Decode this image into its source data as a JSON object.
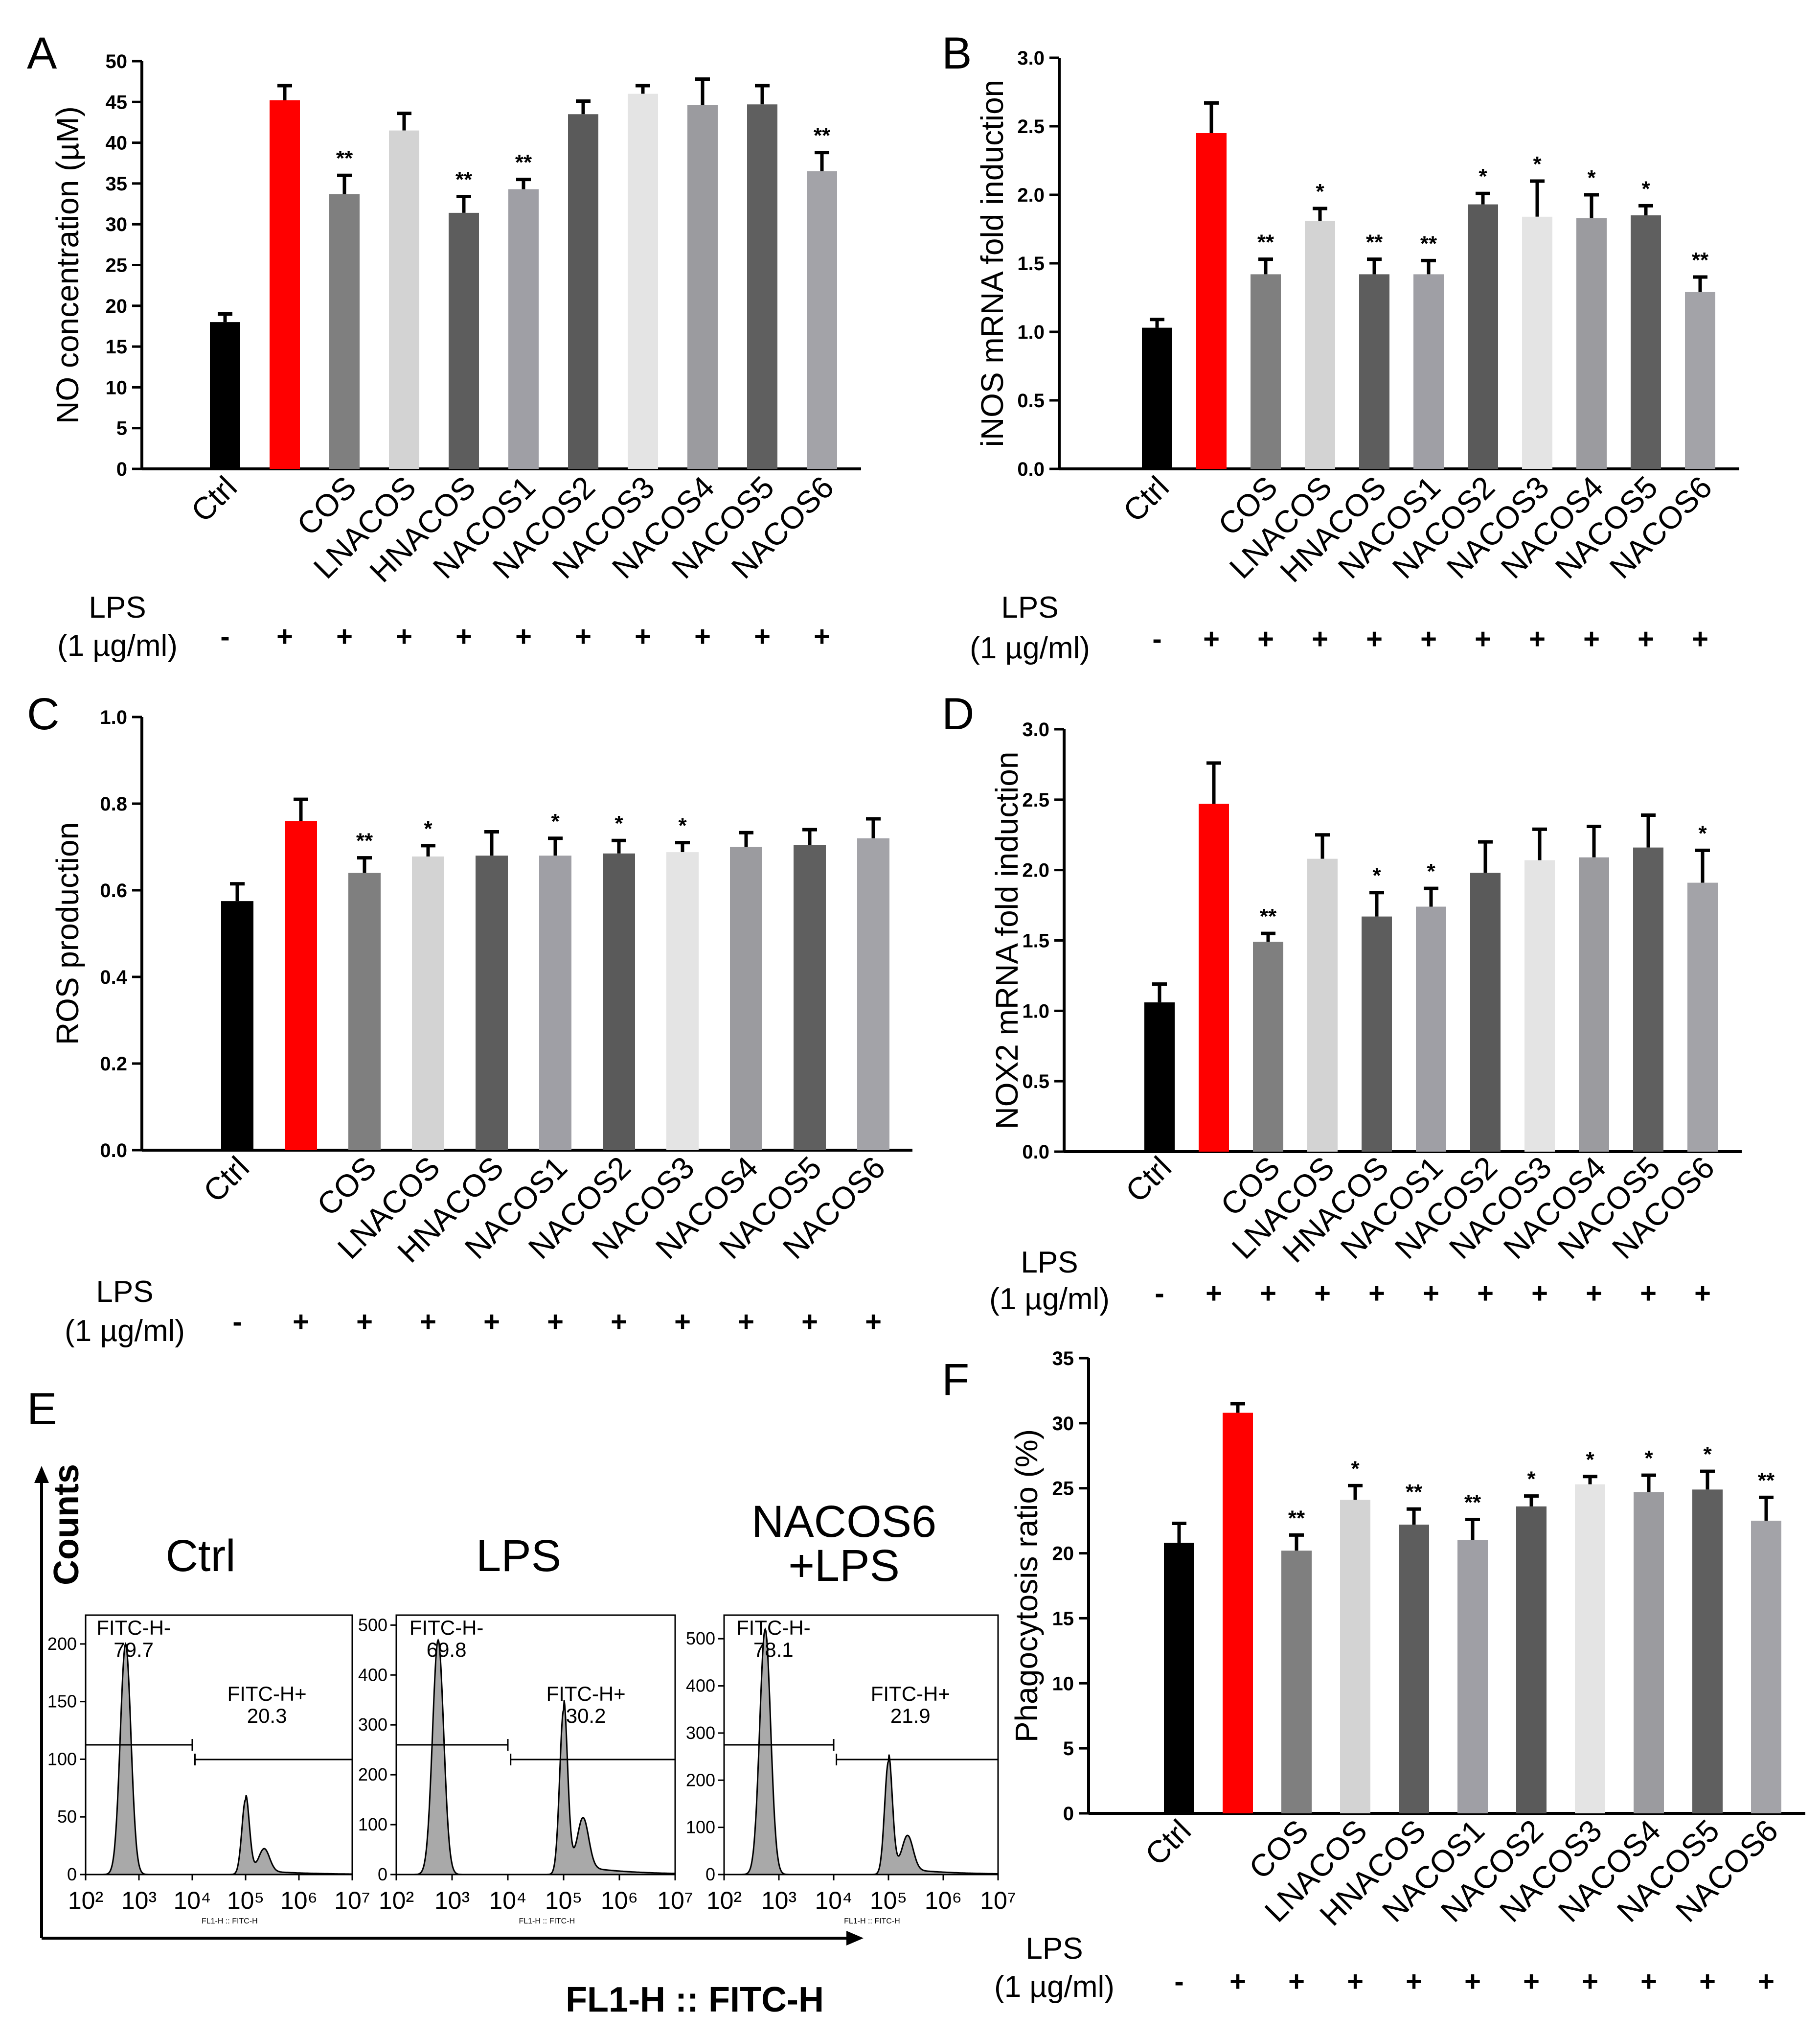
{
  "figure": {
    "lps_label": "LPS",
    "lps_conc": "(1 µg/ml)"
  },
  "chart_data": [
    {
      "panel": "A",
      "type": "bar",
      "ylabel": "NO concentration (µM)",
      "ylim": [
        0,
        50
      ],
      "yticks": [
        0,
        5,
        10,
        15,
        20,
        25,
        30,
        35,
        40,
        45,
        50
      ],
      "ytick_labels": [
        "0",
        "5",
        "10",
        "15",
        "20",
        "25",
        "30",
        "35",
        "40",
        "45",
        "50"
      ],
      "categories": [
        "Ctrl",
        "",
        "COS",
        "LNACOS",
        "HNACOS",
        "NACOS1",
        "NACOS2",
        "NACOS3",
        "NACOS4",
        "NACOS5",
        "NACOS6"
      ],
      "values": [
        18.0,
        45.2,
        33.7,
        41.5,
        31.4,
        34.3,
        43.5,
        46.0,
        44.6,
        44.7,
        36.5
      ],
      "errors": [
        1.0,
        1.8,
        2.3,
        2.1,
        2.0,
        1.2,
        1.6,
        1.0,
        3.2,
        2.3,
        2.3
      ],
      "significance": [
        "",
        "",
        "**",
        "",
        "**",
        "**",
        "",
        "",
        "",
        "",
        "**"
      ],
      "lps": [
        "-",
        "+",
        "+",
        "+",
        "+",
        "+",
        "+",
        "+",
        "+",
        "+",
        "+"
      ]
    },
    {
      "panel": "B",
      "type": "bar",
      "ylabel": "iNOS mRNA fold induction",
      "ylim": [
        0,
        3.0
      ],
      "yticks": [
        0,
        0.5,
        1.0,
        1.5,
        2.0,
        2.5,
        3.0
      ],
      "ytick_labels": [
        "0.0",
        "0.5",
        "1.0",
        "1.5",
        "2.0",
        "2.5",
        "3.0"
      ],
      "categories": [
        "Ctrl",
        "",
        "COS",
        "LNACOS",
        "HNACOS",
        "NACOS1",
        "NACOS2",
        "NACOS3",
        "NACOS4",
        "NACOS5",
        "NACOS6"
      ],
      "values": [
        1.03,
        2.45,
        1.42,
        1.81,
        1.42,
        1.42,
        1.93,
        1.84,
        1.83,
        1.85,
        1.29
      ],
      "errors": [
        0.06,
        0.22,
        0.11,
        0.09,
        0.11,
        0.1,
        0.08,
        0.26,
        0.17,
        0.07,
        0.11
      ],
      "significance": [
        "",
        "",
        "**",
        "*",
        "**",
        "**",
        "*",
        "*",
        "*",
        "*",
        "**"
      ],
      "lps": [
        "-",
        "+",
        "+",
        "+",
        "+",
        "+",
        "+",
        "+",
        "+",
        "+",
        "+"
      ]
    },
    {
      "panel": "C",
      "type": "bar",
      "ylabel": "ROS production",
      "ylim": [
        0,
        1.0
      ],
      "yticks": [
        0,
        0.2,
        0.4,
        0.6,
        0.8,
        1.0
      ],
      "ytick_labels": [
        "0.0",
        "0.2",
        "0.4",
        "0.6",
        "0.8",
        "1.0"
      ],
      "categories": [
        "Ctrl",
        "",
        "COS",
        "LNACOS",
        "HNACOS",
        "NACOS1",
        "NACOS2",
        "NACOS3",
        "NACOS4",
        "NACOS5",
        "NACOS6"
      ],
      "values": [
        0.575,
        0.76,
        0.64,
        0.678,
        0.68,
        0.68,
        0.685,
        0.688,
        0.7,
        0.705,
        0.72
      ],
      "errors": [
        0.04,
        0.05,
        0.035,
        0.025,
        0.055,
        0.04,
        0.03,
        0.022,
        0.033,
        0.035,
        0.045
      ],
      "significance": [
        "",
        "",
        "**",
        "*",
        "",
        "*",
        "*",
        "*",
        "",
        "",
        ""
      ],
      "lps": [
        "-",
        "+",
        "+",
        "+",
        "+",
        "+",
        "+",
        "+",
        "+",
        "+",
        "+"
      ]
    },
    {
      "panel": "D",
      "type": "bar",
      "ylabel": "NOX2 mRNA fold induction",
      "ylim": [
        0,
        3.0
      ],
      "yticks": [
        0,
        0.5,
        1.0,
        1.5,
        2.0,
        2.5,
        3.0
      ],
      "ytick_labels": [
        "0.0",
        "0.5",
        "1.0",
        "1.5",
        "2.0",
        "2.5",
        "3.0"
      ],
      "categories": [
        "Ctrl",
        "",
        "COS",
        "LNACOS",
        "HNACOS",
        "NACOS1",
        "NACOS2",
        "NACOS3",
        "NACOS4",
        "NACOS5",
        "NACOS6"
      ],
      "values": [
        1.06,
        2.47,
        1.49,
        2.08,
        1.67,
        1.74,
        1.98,
        2.07,
        2.09,
        2.16,
        1.91
      ],
      "errors": [
        0.13,
        0.29,
        0.06,
        0.17,
        0.17,
        0.13,
        0.22,
        0.22,
        0.22,
        0.23,
        0.23
      ],
      "significance": [
        "",
        "",
        "**",
        "",
        "*",
        "*",
        "",
        "",
        "",
        "",
        "*"
      ],
      "lps": [
        "-",
        "+",
        "+",
        "+",
        "+",
        "+",
        "+",
        "+",
        "+",
        "+",
        "+"
      ]
    },
    {
      "panel": "F",
      "type": "bar",
      "ylabel": "Phagocytosis ratio (%)",
      "ylim": [
        0,
        35
      ],
      "yticks": [
        0,
        5,
        10,
        15,
        20,
        25,
        30,
        35
      ],
      "ytick_labels": [
        "0",
        "5",
        "10",
        "15",
        "20",
        "25",
        "30",
        "35"
      ],
      "categories": [
        "Ctrl",
        "",
        "COS",
        "LNACOS",
        "HNACOS",
        "NACOS1",
        "NACOS2",
        "NACOS3",
        "NACOS4",
        "NACOS5",
        "NACOS6"
      ],
      "values": [
        20.8,
        30.8,
        20.2,
        24.1,
        22.2,
        21.0,
        23.6,
        25.3,
        24.7,
        24.9,
        22.5
      ],
      "errors": [
        1.5,
        0.7,
        1.2,
        1.1,
        1.2,
        1.6,
        0.8,
        0.6,
        1.3,
        1.4,
        1.8
      ],
      "significance": [
        "",
        "",
        "**",
        "*",
        "**",
        "**",
        "*",
        "*",
        "*",
        "*",
        "**"
      ],
      "lps": [
        "-",
        "+",
        "+",
        "+",
        "+",
        "+",
        "+",
        "+",
        "+",
        "+",
        "+"
      ]
    }
  ],
  "colors": [
    "#000000",
    "#ff0000",
    "#7f7f7f",
    "#d3d3d3",
    "#5d5d5d",
    "#9f9fa5",
    "#5a5a5a",
    "#e4e4e4",
    "#9b9b9f",
    "#5f5f5f",
    "#a3a3a8"
  ],
  "flow": {
    "panel": "E",
    "type": "histogram",
    "y_axis_label": "Counts",
    "x_axis_label": "FL1-H :: FITC-H",
    "small_axis_label": "FL1-H :: FITC-H",
    "x_tick_labels": [
      "10²",
      "10³",
      "10⁴",
      "10⁵",
      "10⁶",
      "10⁷"
    ],
    "plots": [
      {
        "title_lines": [
          "Ctrl"
        ],
        "yticks": [
          0,
          50,
          100,
          150,
          200
        ],
        "ytick_labels": [
          "0",
          "50",
          "100",
          "150",
          "200"
        ],
        "ymax": 225,
        "gate_minus_label": "FITC-H-",
        "gate_minus_value": "79.7",
        "gate_plus_label": "FITC-H+",
        "gate_plus_value": "20.3",
        "peak_neg_height": 200,
        "peak_pos_height": 65
      },
      {
        "title_lines": [
          "LPS"
        ],
        "yticks": [
          0,
          100,
          200,
          300,
          400,
          500
        ],
        "ytick_labels": [
          "0",
          "100",
          "200",
          "300",
          "400",
          "500"
        ],
        "ymax": 520,
        "gate_minus_label": "FITC-H-",
        "gate_minus_value": "69.8",
        "gate_plus_label": "FITC-H+",
        "gate_plus_value": "30.2",
        "peak_neg_height": 470,
        "peak_pos_height": 330
      },
      {
        "title_lines": [
          "NACOS6",
          "+LPS"
        ],
        "yticks": [
          0,
          100,
          200,
          300,
          400,
          500
        ],
        "ytick_labels": [
          "0",
          "100",
          "200",
          "300",
          "400",
          "500"
        ],
        "ymax": 550,
        "gate_minus_label": "FITC-H-",
        "gate_minus_value": "78.1",
        "gate_plus_label": "FITC-H+",
        "gate_plus_value": "21.9",
        "peak_neg_height": 520,
        "peak_pos_height": 240
      }
    ]
  }
}
